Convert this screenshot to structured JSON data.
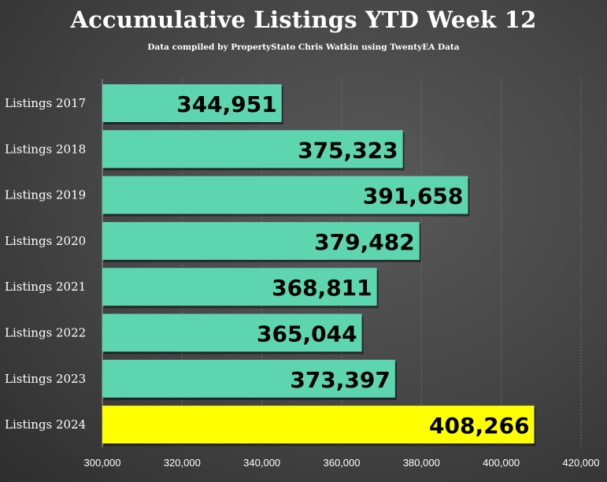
{
  "chart_data": {
    "type": "bar",
    "orientation": "horizontal",
    "title": "Accumulative Listings YTD Week 12",
    "subtitle": "Data compiled by PropertyStato Chris Watkin using TwentyEA Data",
    "categories": [
      "Listings 2017",
      "Listings 2018",
      "Listings 2019",
      "Listings 2020",
      "Listings 2021",
      "Listings 2022",
      "Listings 2023",
      "Listings 2024"
    ],
    "values": [
      344951,
      375323,
      391658,
      379482,
      368811,
      365044,
      373397,
      408266
    ],
    "value_labels": [
      "344,951",
      "375,323",
      "391,658",
      "379,482",
      "368,811",
      "365,044",
      "373,397",
      "408,266"
    ],
    "bar_colors": [
      "#5dd6b0",
      "#5dd6b0",
      "#5dd6b0",
      "#5dd6b0",
      "#5dd6b0",
      "#5dd6b0",
      "#5dd6b0",
      "#ffff00"
    ],
    "xlim": [
      300000,
      420000
    ],
    "xticks": [
      300000,
      320000,
      340000,
      360000,
      380000,
      400000,
      420000
    ],
    "xtick_labels": [
      "300,000",
      "320,000",
      "340,000",
      "360,000",
      "380,000",
      "400,000",
      "420,000"
    ],
    "grid": true,
    "legend": "none"
  }
}
